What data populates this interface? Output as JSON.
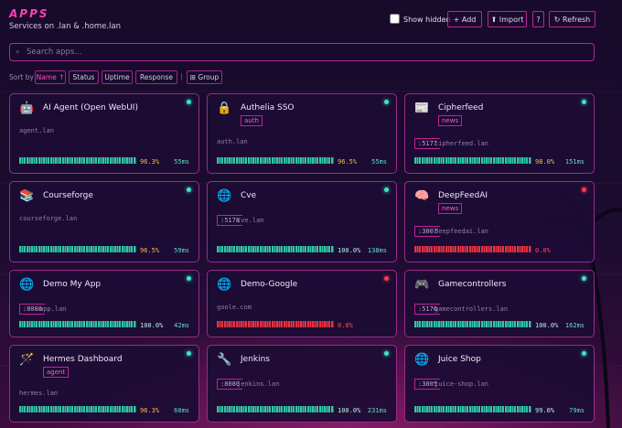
{
  "header": {
    "title": "APPS",
    "subtitle": "Services on .lan & .home.lan"
  },
  "controls": {
    "show_hidden": "Show hidden",
    "add": "+ Add",
    "import": "⬆ Import",
    "help": "?",
    "refresh": "↻ Refresh"
  },
  "search": {
    "placeholder": "Search apps..."
  },
  "sort": {
    "label": "Sort by",
    "buttons": [
      "Name ↑",
      "Status",
      "Uptime",
      "Response"
    ],
    "group": "⊞ Group"
  },
  "apps": [
    {
      "icon": "🤖",
      "name": "AI Agent (Open WebUI)",
      "host": "agent.lan",
      "uptime": "96.3%",
      "response": "55ms",
      "status": "up"
    },
    {
      "icon": "🔒",
      "name": "Authelia SSO",
      "tag": "auth",
      "host": "auth.lan",
      "uptime": "96.5%",
      "response": "55ms",
      "status": "up"
    },
    {
      "icon": "📰",
      "name": "Cipherfeed",
      "tag": "news",
      "port": ":5177",
      "host": "cipherfeed.lan",
      "uptime": "98.0%",
      "response": "151ms",
      "status": "up"
    },
    {
      "icon": "📚",
      "name": "Courseforge",
      "host": "courseforge.lan",
      "uptime": "96.5%",
      "response": "59ms",
      "status": "up"
    },
    {
      "icon": "🌐",
      "name": "Cve",
      "port": ":5178",
      "host": "cve.lan",
      "uptime": "100.0%",
      "response": "138ms",
      "status": "up"
    },
    {
      "icon": "🧠",
      "name": "DeepFeedAI",
      "tag": "news",
      "port": ":3007",
      "host": "deepfeedai.lan",
      "uptime": "0.0%",
      "status": "down"
    },
    {
      "icon": "🌐",
      "name": "Demo My App",
      "port": ":8080",
      "host": "app.lan",
      "uptime": "100.0%",
      "response": "42ms",
      "status": "up"
    },
    {
      "icon": "🌐",
      "name": "Demo-Google",
      "host": "goole.com",
      "uptime": "0.0%",
      "status": "down"
    },
    {
      "icon": "🎮",
      "name": "Gamecontrollers",
      "port": ":5176",
      "host": "gamecontrollers.lan",
      "uptime": "100.0%",
      "response": "162ms",
      "status": "up"
    },
    {
      "icon": "🪄",
      "name": "Hermes Dashboard",
      "tag": "agent",
      "host": "hermes.lan",
      "uptime": "96.3%",
      "response": "60ms",
      "status": "up"
    },
    {
      "icon": "🔧",
      "name": "Jenkins",
      "port": ":8080",
      "host": "jenkins.lan",
      "uptime": "100.0%",
      "response": "231ms",
      "status": "up"
    },
    {
      "icon": "🌐",
      "name": "Juice Shop",
      "port": ":3005",
      "host": "juice-shop.lan",
      "uptime": "99.0%",
      "response": "79ms",
      "status": "up"
    }
  ]
}
